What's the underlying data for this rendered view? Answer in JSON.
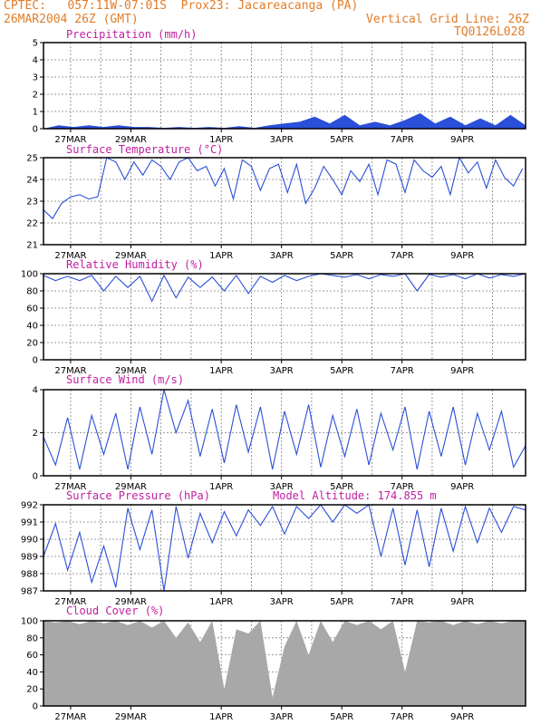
{
  "header": {
    "line1": "CPTEC:   057:11W-07:01S  Prox23: Jacareacanga (PA)",
    "line2_left": "26MAR2004 26Z (GMT)",
    "line2_right": "Vertical Grid Line: 26Z",
    "line3_right": "TQ0126L028"
  },
  "colors": {
    "header": "#e07d2a",
    "title": "#c01fa0",
    "series": "#2a4fd8",
    "cloud": "#a8a8a8",
    "grid": "#808080"
  },
  "x_tick_labels": [
    "27MAR",
    "29MAR",
    "1APR",
    "3APR",
    "5APR",
    "7APR",
    "9APR"
  ],
  "chart_data": [
    {
      "type": "area",
      "title": "Precipitation (mm/h)",
      "ylim": [
        0,
        5
      ],
      "yticks": [
        "0",
        "1",
        "2",
        "3",
        "4",
        "5"
      ],
      "x_days": [
        0,
        0.5,
        1,
        1.5,
        2,
        2.5,
        3,
        3.5,
        4,
        4.5,
        5,
        5.5,
        6,
        6.5,
        7,
        7.5,
        8,
        8.5,
        9,
        9.5,
        10,
        10.5,
        11,
        11.5,
        12,
        12.5,
        13,
        13.5,
        14,
        14.5,
        15,
        15.5,
        16
      ],
      "values": [
        0,
        0.2,
        0.1,
        0.2,
        0.1,
        0.2,
        0.1,
        0.1,
        0.05,
        0.1,
        0.05,
        0.1,
        0.05,
        0.15,
        0.05,
        0.2,
        0.3,
        0.4,
        0.7,
        0.3,
        0.8,
        0.2,
        0.4,
        0.2,
        0.5,
        0.9,
        0.3,
        0.7,
        0.2,
        0.6,
        0.2,
        0.8,
        0.2
      ]
    },
    {
      "type": "line",
      "title": "Surface Temperature (°C)",
      "ylim": [
        21,
        25
      ],
      "yticks": [
        "21",
        "22",
        "23",
        "24",
        "25"
      ],
      "x_days": [
        0,
        0.3,
        0.6,
        0.9,
        1.2,
        1.5,
        1.8,
        2.1,
        2.4,
        2.7,
        3.0,
        3.3,
        3.6,
        3.9,
        4.2,
        4.5,
        4.8,
        5.1,
        5.4,
        5.7,
        6.0,
        6.3,
        6.6,
        6.9,
        7.2,
        7.5,
        7.8,
        8.1,
        8.4,
        8.7,
        9.0,
        9.3,
        9.6,
        9.9,
        10.2,
        10.5,
        10.8,
        11.1,
        11.4,
        11.7,
        12.0,
        12.3,
        12.6,
        12.9,
        13.2,
        13.5,
        13.8,
        14.1,
        14.4,
        14.7,
        15.0,
        15.3,
        15.6,
        15.9
      ],
      "values": [
        22.6,
        22.2,
        22.9,
        23.2,
        23.3,
        23.1,
        23.2,
        25.0,
        24.8,
        24.0,
        24.8,
        24.2,
        24.9,
        24.6,
        24.0,
        24.8,
        25.0,
        24.4,
        24.6,
        23.7,
        24.5,
        23.1,
        24.9,
        24.6,
        23.5,
        24.5,
        24.7,
        23.4,
        24.7,
        22.9,
        23.6,
        24.6,
        24.0,
        23.3,
        24.4,
        23.9,
        24.7,
        23.3,
        24.9,
        24.7,
        23.4,
        24.9,
        24.4,
        24.1,
        24.6,
        23.3,
        25.0,
        24.3,
        24.8,
        23.6,
        24.9,
        24.1,
        23.7,
        24.5
      ]
    },
    {
      "type": "line",
      "title": "Relative Humidity (%)",
      "ylim": [
        0,
        100
      ],
      "yticks": [
        "0",
        "20",
        "40",
        "60",
        "80",
        "100"
      ],
      "x_days": [
        0,
        0.4,
        0.8,
        1.2,
        1.6,
        2.0,
        2.4,
        2.8,
        3.2,
        3.6,
        4.0,
        4.4,
        4.8,
        5.2,
        5.6,
        6.0,
        6.4,
        6.8,
        7.2,
        7.6,
        8.0,
        8.4,
        8.8,
        9.2,
        9.6,
        10.0,
        10.4,
        10.8,
        11.2,
        11.6,
        12.0,
        12.4,
        12.8,
        13.2,
        13.6,
        14.0,
        14.4,
        14.8,
        15.2,
        15.6,
        16.0
      ],
      "values": [
        98,
        92,
        97,
        92,
        98,
        80,
        97,
        84,
        97,
        68,
        98,
        72,
        96,
        84,
        96,
        80,
        98,
        77,
        97,
        90,
        98,
        92,
        97,
        100,
        98,
        96,
        99,
        94,
        99,
        97,
        100,
        80,
        99,
        96,
        99,
        94,
        100,
        95,
        99,
        97,
        100
      ]
    },
    {
      "type": "line",
      "title": "Surface Wind (m/s)",
      "ylim": [
        0,
        4
      ],
      "yticks": [
        "0",
        "2",
        "4"
      ],
      "x_days": [
        0,
        0.4,
        0.8,
        1.2,
        1.6,
        2.0,
        2.4,
        2.8,
        3.2,
        3.6,
        4.0,
        4.4,
        4.8,
        5.2,
        5.6,
        6.0,
        6.4,
        6.8,
        7.2,
        7.6,
        8.0,
        8.4,
        8.8,
        9.2,
        9.6,
        10.0,
        10.4,
        10.8,
        11.2,
        11.6,
        12.0,
        12.4,
        12.8,
        13.2,
        13.6,
        14.0,
        14.4,
        14.8,
        15.2,
        15.6,
        16.0
      ],
      "values": [
        1.8,
        0.5,
        2.7,
        0.3,
        2.8,
        1.0,
        2.9,
        0.3,
        3.2,
        1.0,
        4.0,
        2.0,
        3.5,
        0.9,
        3.1,
        0.6,
        3.3,
        1.1,
        3.2,
        0.3,
        3.0,
        1.0,
        3.3,
        0.4,
        2.8,
        0.9,
        3.1,
        0.5,
        2.9,
        1.2,
        3.2,
        0.3,
        3.0,
        0.9,
        3.2,
        0.5,
        2.9,
        1.2,
        3.0,
        0.4,
        1.4
      ]
    },
    {
      "type": "line",
      "title": "Surface Pressure (hPa)",
      "annotation": "Model Altitude: 174.855  m",
      "ylim": [
        987,
        992
      ],
      "yticks": [
        "987",
        "988",
        "989",
        "990",
        "991",
        "992"
      ],
      "x_days": [
        0,
        0.4,
        0.8,
        1.2,
        1.6,
        2.0,
        2.4,
        2.8,
        3.2,
        3.6,
        4.0,
        4.4,
        4.8,
        5.2,
        5.6,
        6.0,
        6.4,
        6.8,
        7.2,
        7.6,
        8.0,
        8.4,
        8.8,
        9.2,
        9.6,
        10.0,
        10.4,
        10.8,
        11.2,
        11.6,
        12.0,
        12.4,
        12.8,
        13.2,
        13.6,
        14.0,
        14.4,
        14.8,
        15.2,
        15.6,
        16.0
      ],
      "values": [
        989.0,
        990.9,
        988.2,
        990.4,
        987.5,
        989.6,
        987.2,
        991.8,
        989.4,
        991.7,
        987.0,
        991.9,
        988.9,
        991.5,
        989.8,
        991.6,
        990.2,
        991.7,
        990.8,
        991.9,
        990.3,
        991.9,
        991.2,
        992.0,
        991.0,
        992.0,
        991.5,
        992.0,
        989.0,
        991.8,
        988.5,
        991.7,
        988.4,
        991.8,
        989.3,
        991.9,
        989.8,
        991.8,
        990.4,
        991.9,
        991.7
      ]
    },
    {
      "type": "area",
      "title": "Cloud Cover (%)",
      "ylim": [
        0,
        100
      ],
      "yticks": [
        "0",
        "20",
        "40",
        "60",
        "80",
        "100"
      ],
      "x_days": [
        0,
        0.4,
        0.8,
        1.2,
        1.6,
        2.0,
        2.4,
        2.8,
        3.2,
        3.6,
        4.0,
        4.4,
        4.8,
        5.2,
        5.6,
        6.0,
        6.4,
        6.8,
        7.2,
        7.6,
        8.0,
        8.4,
        8.8,
        9.2,
        9.6,
        10.0,
        10.4,
        10.8,
        11.2,
        11.6,
        12.0,
        12.4,
        12.8,
        13.2,
        13.6,
        14.0,
        14.4,
        14.8,
        15.2,
        15.6,
        16.0
      ],
      "values": [
        100,
        98,
        100,
        96,
        100,
        97,
        100,
        95,
        100,
        92,
        100,
        80,
        98,
        75,
        100,
        20,
        90,
        85,
        100,
        10,
        70,
        100,
        60,
        100,
        75,
        100,
        95,
        100,
        90,
        100,
        40,
        100,
        98,
        100,
        95,
        100,
        96,
        100,
        97,
        100,
        100
      ]
    }
  ]
}
